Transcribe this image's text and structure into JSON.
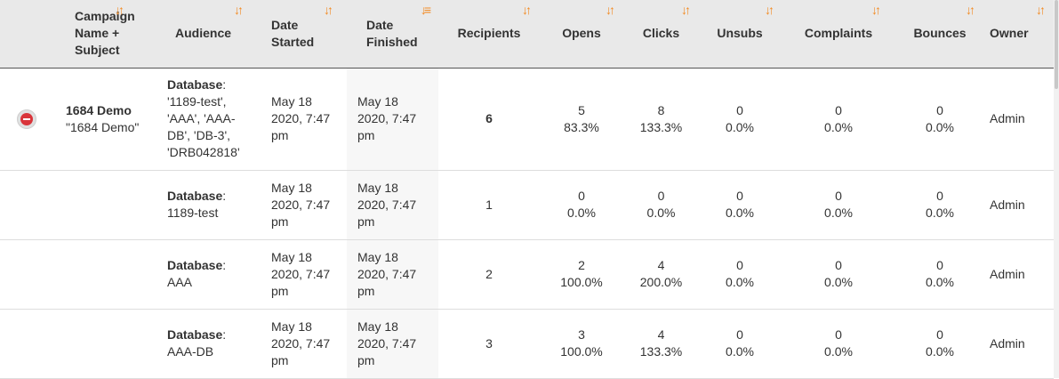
{
  "header": {
    "columns": [
      {
        "key": "campaign",
        "label": "Campaign Name + Subject"
      },
      {
        "key": "audience",
        "label": "Audience"
      },
      {
        "key": "started",
        "label": "Date Started"
      },
      {
        "key": "finished",
        "label": "Date Finished"
      },
      {
        "key": "recipients",
        "label": "Recipients"
      },
      {
        "key": "opens",
        "label": "Opens"
      },
      {
        "key": "clicks",
        "label": "Clicks"
      },
      {
        "key": "unsubs",
        "label": "Unsubs"
      },
      {
        "key": "complaints",
        "label": "Complaints"
      },
      {
        "key": "bounces",
        "label": "Bounces"
      },
      {
        "key": "owner",
        "label": "Owner"
      }
    ],
    "sort_icon": "sort-arrows-icon",
    "active_sort_icon": "sort-desc-icon",
    "accent_color": "#f28a22"
  },
  "rows": [
    {
      "campaign_name": "1684 Demo",
      "subject": "\"1684 Demo\"",
      "audience_label": "Database",
      "audience_value": "'1189-test', 'AAA', 'AAA-DB', 'DB-3', 'DRB042818'",
      "started": "May 18 2020, 7:47 pm",
      "finished": "May 18 2020, 7:47 pm",
      "recipients": "6",
      "opens_count": "5",
      "opens_pct": "83.3%",
      "clicks_count": "8",
      "clicks_pct": "133.3%",
      "unsubs_count": "0",
      "unsubs_pct": "0.0%",
      "complaints_count": "0",
      "complaints_pct": "0.0%",
      "bounces_count": "0",
      "bounces_pct": "0.0%",
      "owner": "Admin"
    },
    {
      "audience_label": "Database",
      "audience_value": "1189-test",
      "started": "May 18 2020, 7:47 pm",
      "finished": "May 18 2020, 7:47 pm",
      "recipients": "1",
      "opens_count": "0",
      "opens_pct": "0.0%",
      "clicks_count": "0",
      "clicks_pct": "0.0%",
      "unsubs_count": "0",
      "unsubs_pct": "0.0%",
      "complaints_count": "0",
      "complaints_pct": "0.0%",
      "bounces_count": "0",
      "bounces_pct": "0.0%",
      "owner": "Admin"
    },
    {
      "audience_label": "Database",
      "audience_value": "AAA",
      "started": "May 18 2020, 7:47 pm",
      "finished": "May 18 2020, 7:47 pm",
      "recipients": "2",
      "opens_count": "2",
      "opens_pct": "100.0%",
      "clicks_count": "4",
      "clicks_pct": "200.0%",
      "unsubs_count": "0",
      "unsubs_pct": "0.0%",
      "complaints_count": "0",
      "complaints_pct": "0.0%",
      "bounces_count": "0",
      "bounces_pct": "0.0%",
      "owner": "Admin"
    },
    {
      "audience_label": "Database",
      "audience_value": "AAA-DB",
      "started": "May 18 2020, 7:47 pm",
      "finished": "May 18 2020, 7:47 pm",
      "recipients": "3",
      "opens_count": "3",
      "opens_pct": "100.0%",
      "clicks_count": "4",
      "clicks_pct": "133.3%",
      "unsubs_count": "0",
      "unsubs_pct": "0.0%",
      "complaints_count": "0",
      "complaints_pct": "0.0%",
      "bounces_count": "0",
      "bounces_pct": "0.0%",
      "owner": "Admin"
    }
  ]
}
